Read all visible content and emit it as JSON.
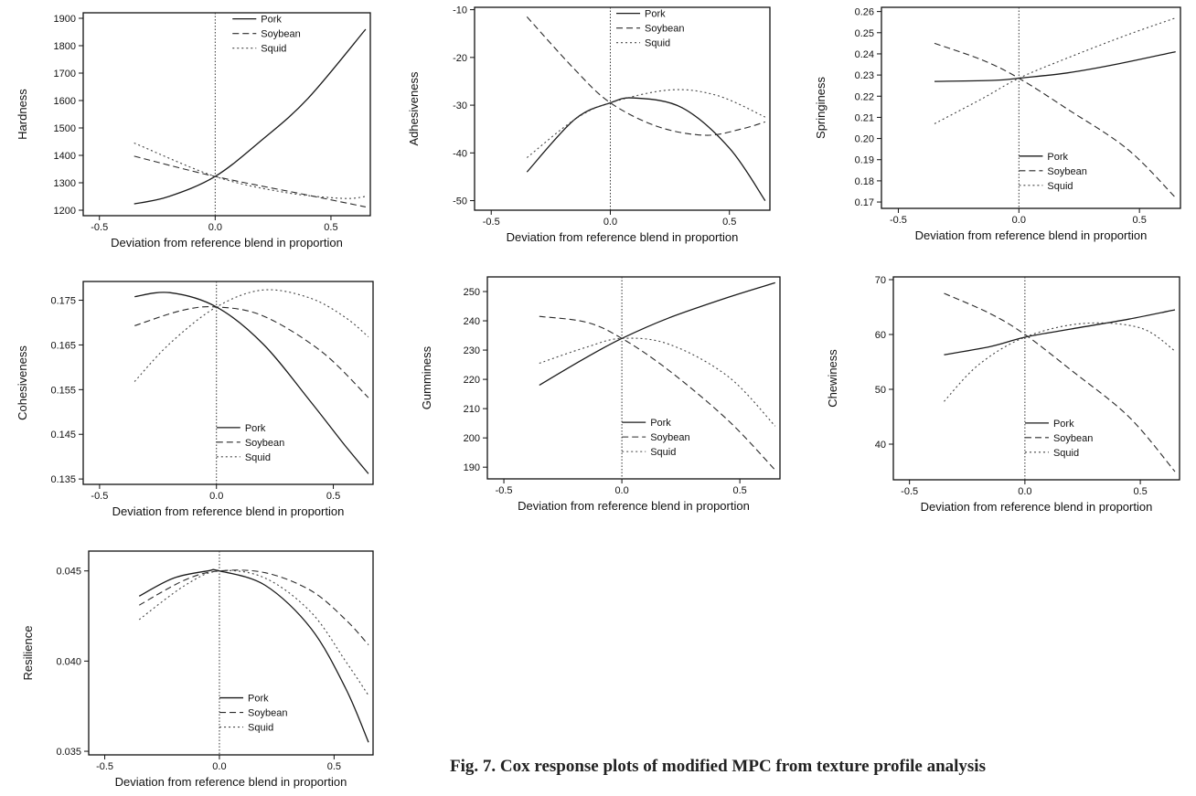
{
  "caption": "Fig. 7. Cox response plots of modified MPC from texture profile analysis",
  "chart_data": [
    {
      "type": "line",
      "ylabel": "Hardness",
      "xlabel": "Deviation from reference blend in proportion",
      "xlim": [
        -0.57,
        0.67
      ],
      "ylim": [
        1180,
        1920
      ],
      "xticks": [
        -0.5,
        0.0,
        0.5
      ],
      "xtick_labels": [
        "-0.5",
        "0.0",
        "0.5"
      ],
      "yticks": [
        1200,
        1300,
        1400,
        1500,
        1600,
        1700,
        1800,
        1900
      ],
      "ytick_labels": [
        "1200",
        "1300",
        "1400",
        "1500",
        "1600",
        "1700",
        "1800",
        "1900"
      ],
      "legend_position": "top-center",
      "reference_line_x": 0,
      "series": [
        {
          "name": "Pork",
          "x": [
            -0.35,
            -0.2,
            0.0,
            0.2,
            0.4,
            0.65
          ],
          "y": [
            1223,
            1250,
            1323,
            1455,
            1607,
            1860
          ]
        },
        {
          "name": "Soybean",
          "x": [
            -0.35,
            0.0,
            0.4,
            0.65
          ],
          "y": [
            1397,
            1323,
            1255,
            1212
          ]
        },
        {
          "name": "Squid",
          "x": [
            -0.35,
            0.0,
            0.3,
            0.55,
            0.65
          ],
          "y": [
            1445,
            1323,
            1265,
            1243,
            1250
          ]
        }
      ]
    },
    {
      "type": "line",
      "ylabel": "Adhesiveness",
      "xlabel": "Deviation from reference blend in proportion",
      "xlim": [
        -0.57,
        0.67
      ],
      "ylim": [
        -52,
        -9.5
      ],
      "xticks": [
        -0.5,
        0.0,
        0.5
      ],
      "xtick_labels": [
        "-0.5",
        "0.0",
        "0.5"
      ],
      "yticks": [
        -50,
        -40,
        -30,
        -20,
        -10
      ],
      "ytick_labels": [
        "-50",
        "-40",
        "-30",
        "-20",
        "-10"
      ],
      "legend_position": "top-right",
      "reference_line_x": 0,
      "series": [
        {
          "name": "Pork",
          "x": [
            -0.35,
            -0.15,
            0.0,
            0.1,
            0.3,
            0.5,
            0.65
          ],
          "y": [
            -44,
            -33,
            -29.5,
            -28.5,
            -30.5,
            -39,
            -50
          ]
        },
        {
          "name": "Soybean",
          "x": [
            -0.35,
            -0.15,
            0.0,
            0.2,
            0.4,
            0.55,
            0.65
          ],
          "y": [
            -11.5,
            -22.5,
            -29.5,
            -34.5,
            -36.3,
            -35,
            -33.5
          ]
        },
        {
          "name": "Squid",
          "x": [
            -0.35,
            -0.15,
            0.0,
            0.25,
            0.45,
            0.65
          ],
          "y": [
            -41,
            -33,
            -29.5,
            -26.8,
            -28,
            -32.5
          ]
        }
      ]
    },
    {
      "type": "line",
      "ylabel": "Springiness",
      "xlabel": "Deviation from reference blend in proportion",
      "xlim": [
        -0.57,
        0.67
      ],
      "ylim": [
        0.167,
        0.262
      ],
      "xticks": [
        -0.5,
        0.0,
        0.5
      ],
      "xtick_labels": [
        "-0.5",
        "0.0",
        "0.5"
      ],
      "yticks": [
        0.17,
        0.18,
        0.19,
        0.2,
        0.21,
        0.22,
        0.23,
        0.24,
        0.25,
        0.26
      ],
      "ytick_labels": [
        "0.17",
        "0.18",
        "0.19",
        "0.20",
        "0.21",
        "0.22",
        "0.23",
        "0.24",
        "0.25",
        "0.26"
      ],
      "legend_position": "bottom-right",
      "reference_line_x": 0,
      "series": [
        {
          "name": "Pork",
          "x": [
            -0.35,
            -0.1,
            0.0,
            0.2,
            0.4,
            0.65
          ],
          "y": [
            0.227,
            0.2275,
            0.2285,
            0.231,
            0.235,
            0.241
          ]
        },
        {
          "name": "Soybean",
          "x": [
            -0.35,
            -0.15,
            0.0,
            0.2,
            0.45,
            0.65
          ],
          "y": [
            0.245,
            0.237,
            0.2285,
            0.214,
            0.195,
            0.172
          ]
        },
        {
          "name": "Squid",
          "x": [
            -0.35,
            -0.15,
            0.0,
            0.2,
            0.45,
            0.65
          ],
          "y": [
            0.207,
            0.219,
            0.2285,
            0.238,
            0.249,
            0.257
          ]
        }
      ]
    },
    {
      "type": "line",
      "ylabel": "Cohesiveness",
      "xlabel": "Deviation from reference blend in proportion",
      "xlim": [
        -0.57,
        0.67
      ],
      "ylim": [
        0.1338,
        0.1792
      ],
      "xticks": [
        -0.5,
        0.0,
        0.5
      ],
      "xtick_labels": [
        "-0.5",
        "0.0",
        "0.5"
      ],
      "yticks": [
        0.135,
        0.145,
        0.155,
        0.165,
        0.175
      ],
      "ytick_labels": [
        "0.135",
        "0.145",
        "0.155",
        "0.165",
        "0.175"
      ],
      "legend_position": "bottom-center",
      "reference_line_x": 0,
      "series": [
        {
          "name": "Pork",
          "x": [
            -0.35,
            -0.2,
            0.0,
            0.2,
            0.4,
            0.55,
            0.65
          ],
          "y": [
            0.1758,
            0.1767,
            0.1735,
            0.1652,
            0.1525,
            0.1425,
            0.1362
          ]
        },
        {
          "name": "Soybean",
          "x": [
            -0.35,
            -0.15,
            0.0,
            0.2,
            0.45,
            0.65
          ],
          "y": [
            0.1693,
            0.1727,
            0.1735,
            0.1715,
            0.1635,
            0.1532
          ]
        },
        {
          "name": "Squid",
          "x": [
            -0.35,
            -0.2,
            0.0,
            0.2,
            0.4,
            0.55,
            0.65
          ],
          "y": [
            0.1568,
            0.1653,
            0.1735,
            0.1773,
            0.1755,
            0.1712,
            0.1668
          ]
        }
      ]
    },
    {
      "type": "line",
      "ylabel": "Gumminess",
      "xlabel": "Deviation from reference blend in proportion",
      "xlim": [
        -0.57,
        0.67
      ],
      "ylim": [
        186,
        255
      ],
      "xticks": [
        -0.5,
        0.0,
        0.5
      ],
      "xtick_labels": [
        "-0.5",
        "0.0",
        "0.5"
      ],
      "yticks": [
        190,
        200,
        210,
        220,
        230,
        240,
        250
      ],
      "ytick_labels": [
        "190",
        "200",
        "210",
        "220",
        "230",
        "240",
        "250"
      ],
      "legend_position": "bottom-center",
      "reference_line_x": 0,
      "series": [
        {
          "name": "Pork",
          "x": [
            -0.35,
            -0.15,
            0.0,
            0.2,
            0.45,
            0.65
          ],
          "y": [
            218,
            227.5,
            234,
            241,
            248,
            253
          ]
        },
        {
          "name": "Soybean",
          "x": [
            -0.35,
            -0.15,
            0.0,
            0.2,
            0.45,
            0.65
          ],
          "y": [
            241.5,
            239.5,
            234,
            223,
            206,
            189
          ]
        },
        {
          "name": "Squid",
          "x": [
            -0.35,
            -0.15,
            0.0,
            0.2,
            0.45,
            0.65
          ],
          "y": [
            225.5,
            231,
            234,
            232,
            221,
            204
          ]
        }
      ]
    },
    {
      "type": "line",
      "ylabel": "Chewiness",
      "xlabel": "Deviation from reference blend in proportion",
      "xlim": [
        -0.57,
        0.67
      ],
      "ylim": [
        33.5,
        70.5
      ],
      "xticks": [
        -0.5,
        0.0,
        0.5
      ],
      "xtick_labels": [
        "-0.5",
        "0.0",
        "0.5"
      ],
      "yticks": [
        40,
        50,
        60,
        70
      ],
      "ytick_labels": [
        "40",
        "50",
        "60",
        "70"
      ],
      "legend_position": "bottom-center",
      "reference_line_x": 0,
      "series": [
        {
          "name": "Pork",
          "x": [
            -0.35,
            -0.15,
            0.0,
            0.2,
            0.45,
            0.65
          ],
          "y": [
            56.3,
            57.8,
            59.5,
            61,
            62.8,
            64.5
          ]
        },
        {
          "name": "Soybean",
          "x": [
            -0.35,
            -0.15,
            0.0,
            0.2,
            0.45,
            0.65
          ],
          "y": [
            67.5,
            63.8,
            60,
            53.5,
            45,
            35
          ]
        },
        {
          "name": "Squid",
          "x": [
            -0.35,
            -0.2,
            0.0,
            0.25,
            0.5,
            0.65
          ],
          "y": [
            47.8,
            54.5,
            59.5,
            62,
            61.2,
            57
          ]
        }
      ]
    },
    {
      "type": "line",
      "ylabel": "Resilience",
      "xlabel": "Deviation from reference blend in proportion",
      "xlim": [
        -0.57,
        0.67
      ],
      "ylim": [
        0.0348,
        0.0461
      ],
      "xticks": [
        -0.5,
        0.0,
        0.5
      ],
      "xtick_labels": [
        "-0.5",
        "0.0",
        "0.5"
      ],
      "yticks": [
        0.035,
        0.04,
        0.045
      ],
      "ytick_labels": [
        "0.035",
        "0.040",
        "0.045"
      ],
      "legend_position": "bottom-center",
      "reference_line_x": 0,
      "series": [
        {
          "name": "Pork",
          "x": [
            -0.35,
            -0.2,
            -0.05,
            0.0,
            0.2,
            0.4,
            0.55,
            0.65
          ],
          "y": [
            0.0436,
            0.0446,
            0.045,
            0.045,
            0.0442,
            0.0418,
            0.0385,
            0.0355
          ]
        },
        {
          "name": "Soybean",
          "x": [
            -0.35,
            -0.15,
            0.0,
            0.2,
            0.4,
            0.55,
            0.65
          ],
          "y": [
            0.0431,
            0.0445,
            0.045,
            0.0449,
            0.0439,
            0.0423,
            0.0409
          ]
        },
        {
          "name": "Squid",
          "x": [
            -0.35,
            -0.15,
            0.0,
            0.2,
            0.4,
            0.55,
            0.65
          ],
          "y": [
            0.0423,
            0.0442,
            0.045,
            0.0446,
            0.0427,
            0.04,
            0.0381
          ]
        }
      ]
    }
  ]
}
